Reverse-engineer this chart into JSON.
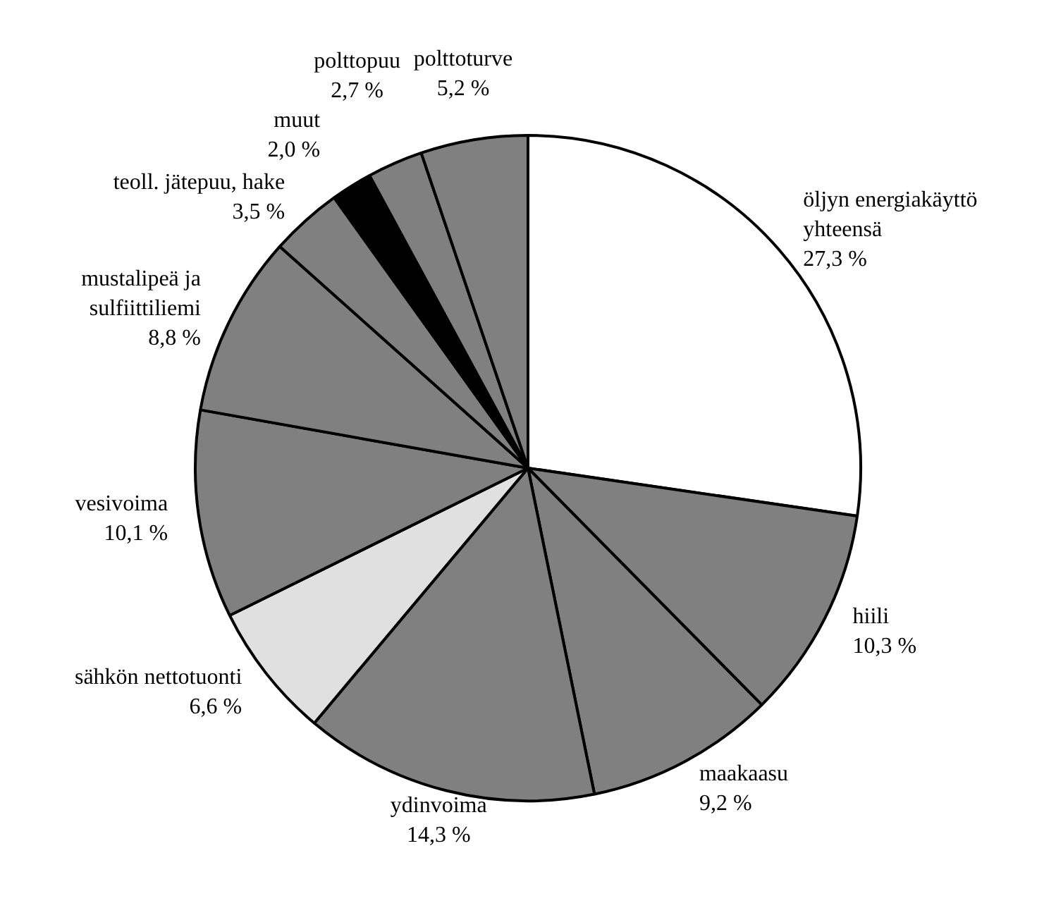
{
  "chart_data": {
    "type": "pie",
    "categories": [
      "öljyn energiakäyttö yhteensä",
      "hiili",
      "maakaasu",
      "ydinvoima",
      "sähkön nettotuonti",
      "vesivoima",
      "mustalipeä ja sulfiittiliemi",
      "teoll. jätepuu, hake",
      "muut",
      "polttopuu",
      "polttoturve"
    ],
    "values": [
      27.3,
      10.3,
      9.2,
      14.3,
      6.6,
      10.1,
      8.8,
      3.5,
      2.0,
      2.7,
      5.2
    ],
    "value_labels": [
      "27,3 %",
      "10,3 %",
      "9,2 %",
      "14,3 %",
      "6,6 %",
      "10,1 %",
      "8,8 %",
      "3,5 %",
      "2,0 %",
      "2,7 %",
      "5,2 %"
    ],
    "colors": [
      "#ffffff",
      "#808080",
      "#808080",
      "#808080",
      "#e0e0e0",
      "#808080",
      "#808080",
      "#808080",
      "#000000",
      "#808080",
      "#808080"
    ],
    "legend": false
  }
}
